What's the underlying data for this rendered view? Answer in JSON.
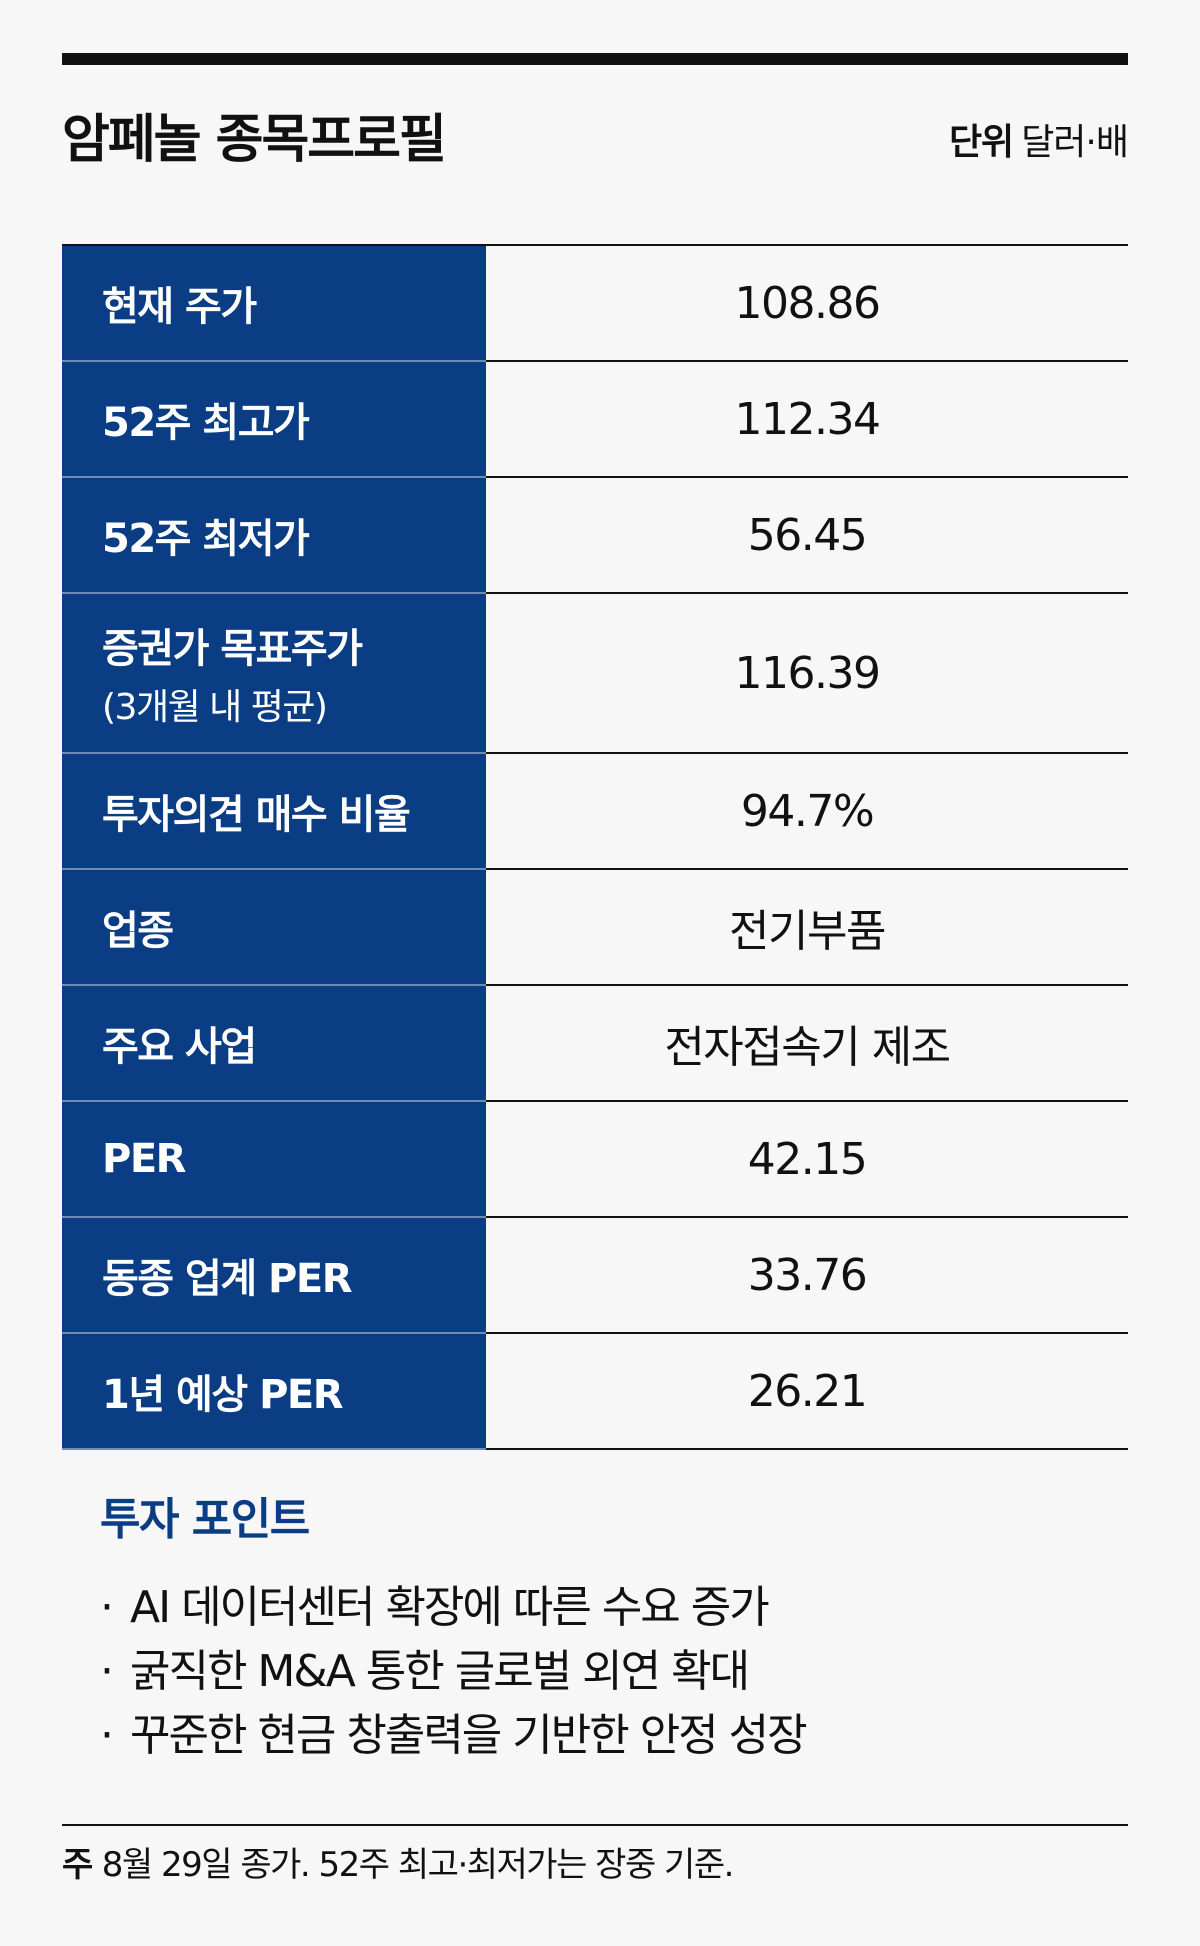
{
  "header": {
    "title": "암페놀 종목프로필",
    "unit_key": "단위",
    "unit_value": "달러·배"
  },
  "table": {
    "rows": [
      {
        "label": "현재 주가",
        "value": "108.86"
      },
      {
        "label": "52주 최고가",
        "value": "112.34"
      },
      {
        "label": "52주 최저가",
        "value": "56.45"
      },
      {
        "label": "증권가 목표주가",
        "sub": "(3개월 내 평균)",
        "value": "116.39"
      },
      {
        "label": "투자의견 매수 비율",
        "value": "94.7%"
      },
      {
        "label": "업종",
        "value": "전기부품"
      },
      {
        "label": "주요 사업",
        "value": "전자접속기 제조"
      },
      {
        "label": "PER",
        "value": "42.15"
      },
      {
        "label": "동종 업계 PER",
        "value": "33.76"
      },
      {
        "label": "1년 예상 PER",
        "value": "26.21"
      }
    ]
  },
  "points": {
    "title": "투자 포인트",
    "bullet": "·",
    "items": [
      "AI 데이터센터 확장에 따른 수요 증가",
      "굵직한 M&A 통한 글로벌 외연 확대",
      "꾸준한 현금 창출력을 기반한 안정 성장"
    ]
  },
  "footnote": {
    "key": "주",
    "text": "8월 29일 종가. 52주 최고·최저가는 장중 기준."
  },
  "colors": {
    "label_bg": "#0a3d84",
    "accent_text": "#0a3d84",
    "page_bg": "#f7f7f7"
  }
}
